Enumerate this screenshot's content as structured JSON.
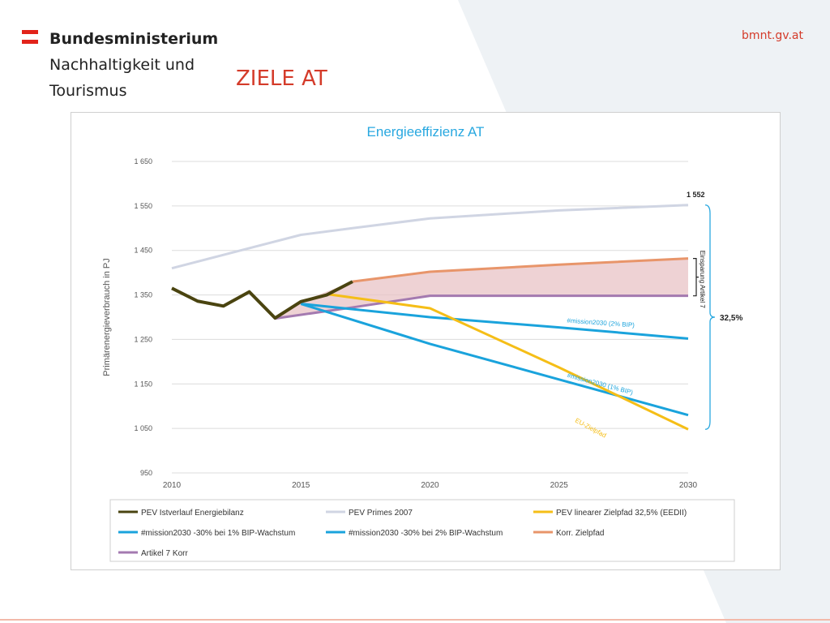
{
  "header": {
    "ministry_lines": [
      "Bundesministerium",
      "Nachhaltigkeit und",
      "Tourismus"
    ],
    "site": "bmnt.gv.at",
    "title": "ZIELE AT"
  },
  "colors": {
    "accent_red": "#d43b2a",
    "title_blue": "#29a8e0"
  },
  "chart_data": {
    "type": "line",
    "title": "Energieeffizienz AT",
    "ylabel": "Primärenergieverbrauch in PJ",
    "xlabel": "",
    "xlim": [
      2010,
      2030
    ],
    "ylim": [
      950,
      1650
    ],
    "y_ticks": [
      950,
      1050,
      1150,
      1250,
      1350,
      1450,
      1550,
      1650
    ],
    "y_tick_labels": [
      "950",
      "1 050",
      "1 150",
      "1 250",
      "1 350",
      "1 450",
      "1 550",
      "1 650"
    ],
    "x_ticks": [
      2010,
      2015,
      2020,
      2025,
      2030
    ],
    "grid": true,
    "legend_position": "bottom",
    "series": [
      {
        "name": "PEV Primes 2007",
        "color": "#d0d5e3",
        "width": 3,
        "x": [
          2010,
          2013,
          2015,
          2017,
          2020,
          2025,
          2030
        ],
        "y": [
          1410,
          1455,
          1485,
          1500,
          1522,
          1540,
          1552
        ]
      },
      {
        "name": "Korr. Zielpfad",
        "color": "#e8956a",
        "width": 3,
        "x": [
          2017,
          2020,
          2025,
          2030
        ],
        "y": [
          1380,
          1402,
          1418,
          1432
        ]
      },
      {
        "name": "Artikel 7  Korr",
        "color": "#a47ab0",
        "width": 3,
        "x": [
          2014,
          2017,
          2020,
          2030
        ],
        "y": [
          1297,
          1322,
          1348,
          1348
        ]
      },
      {
        "name": "#mission2030 -30% bei 2% BIP-Wachstum",
        "color": "#1aa3dc",
        "width": 3,
        "x": [
          2015,
          2020,
          2025,
          2030
        ],
        "y": [
          1330,
          1300,
          1277,
          1252
        ]
      },
      {
        "name": "#mission2030 -30% bei 1% BIP-Wachstum",
        "color": "#1aa3dc",
        "width": 3,
        "x": [
          2015,
          2020,
          2025,
          2030
        ],
        "y": [
          1330,
          1240,
          1160,
          1080
        ]
      },
      {
        "name": "PEV linearer Zielpfad 32,5% (EEDII)",
        "color": "#f5be17",
        "width": 3,
        "x": [
          2016,
          2020,
          2025,
          2030
        ],
        "y": [
          1352,
          1320,
          1187,
          1048
        ]
      },
      {
        "name": "PEV Istverlauf Energiebilanz",
        "color": "#4a4410",
        "width": 4,
        "x": [
          2010,
          2011,
          2012,
          2013,
          2014,
          2015,
          2016,
          2017
        ],
        "y": [
          1365,
          1336,
          1325,
          1357,
          1298,
          1335,
          1350,
          1380
        ]
      }
    ],
    "fill_between": {
      "color": "#e8c3c5",
      "upper": {
        "x": [
          2015,
          2017,
          2020,
          2025,
          2030
        ],
        "y": [
          1335,
          1380,
          1402,
          1418,
          1432
        ]
      },
      "lower": {
        "x": [
          2014,
          2015,
          2017,
          2020,
          2030
        ],
        "y": [
          1297,
          1305,
          1322,
          1348,
          1348
        ]
      }
    },
    "legend": [
      "PEV Istverlauf Energiebilanz",
      "PEV Primes 2007",
      "PEV linearer Zielpfad 32,5% (EEDII)",
      "#mission2030 -30% bei 1% BIP-Wachstum",
      "#mission2030 -30% bei 2% BIP-Wachstum",
      "Korr. Zielpfad",
      "Artikel 7  Korr"
    ],
    "annotations": {
      "end_value": "1 552",
      "savings_label": "Einsparung Artikel 7",
      "percent": "32,5%",
      "mission_2pct": "#mission2030 (2% BIP)",
      "mission_1pct": "#mission2030 (1% BIP)",
      "eu_path": "EU-Zielpfad"
    }
  }
}
